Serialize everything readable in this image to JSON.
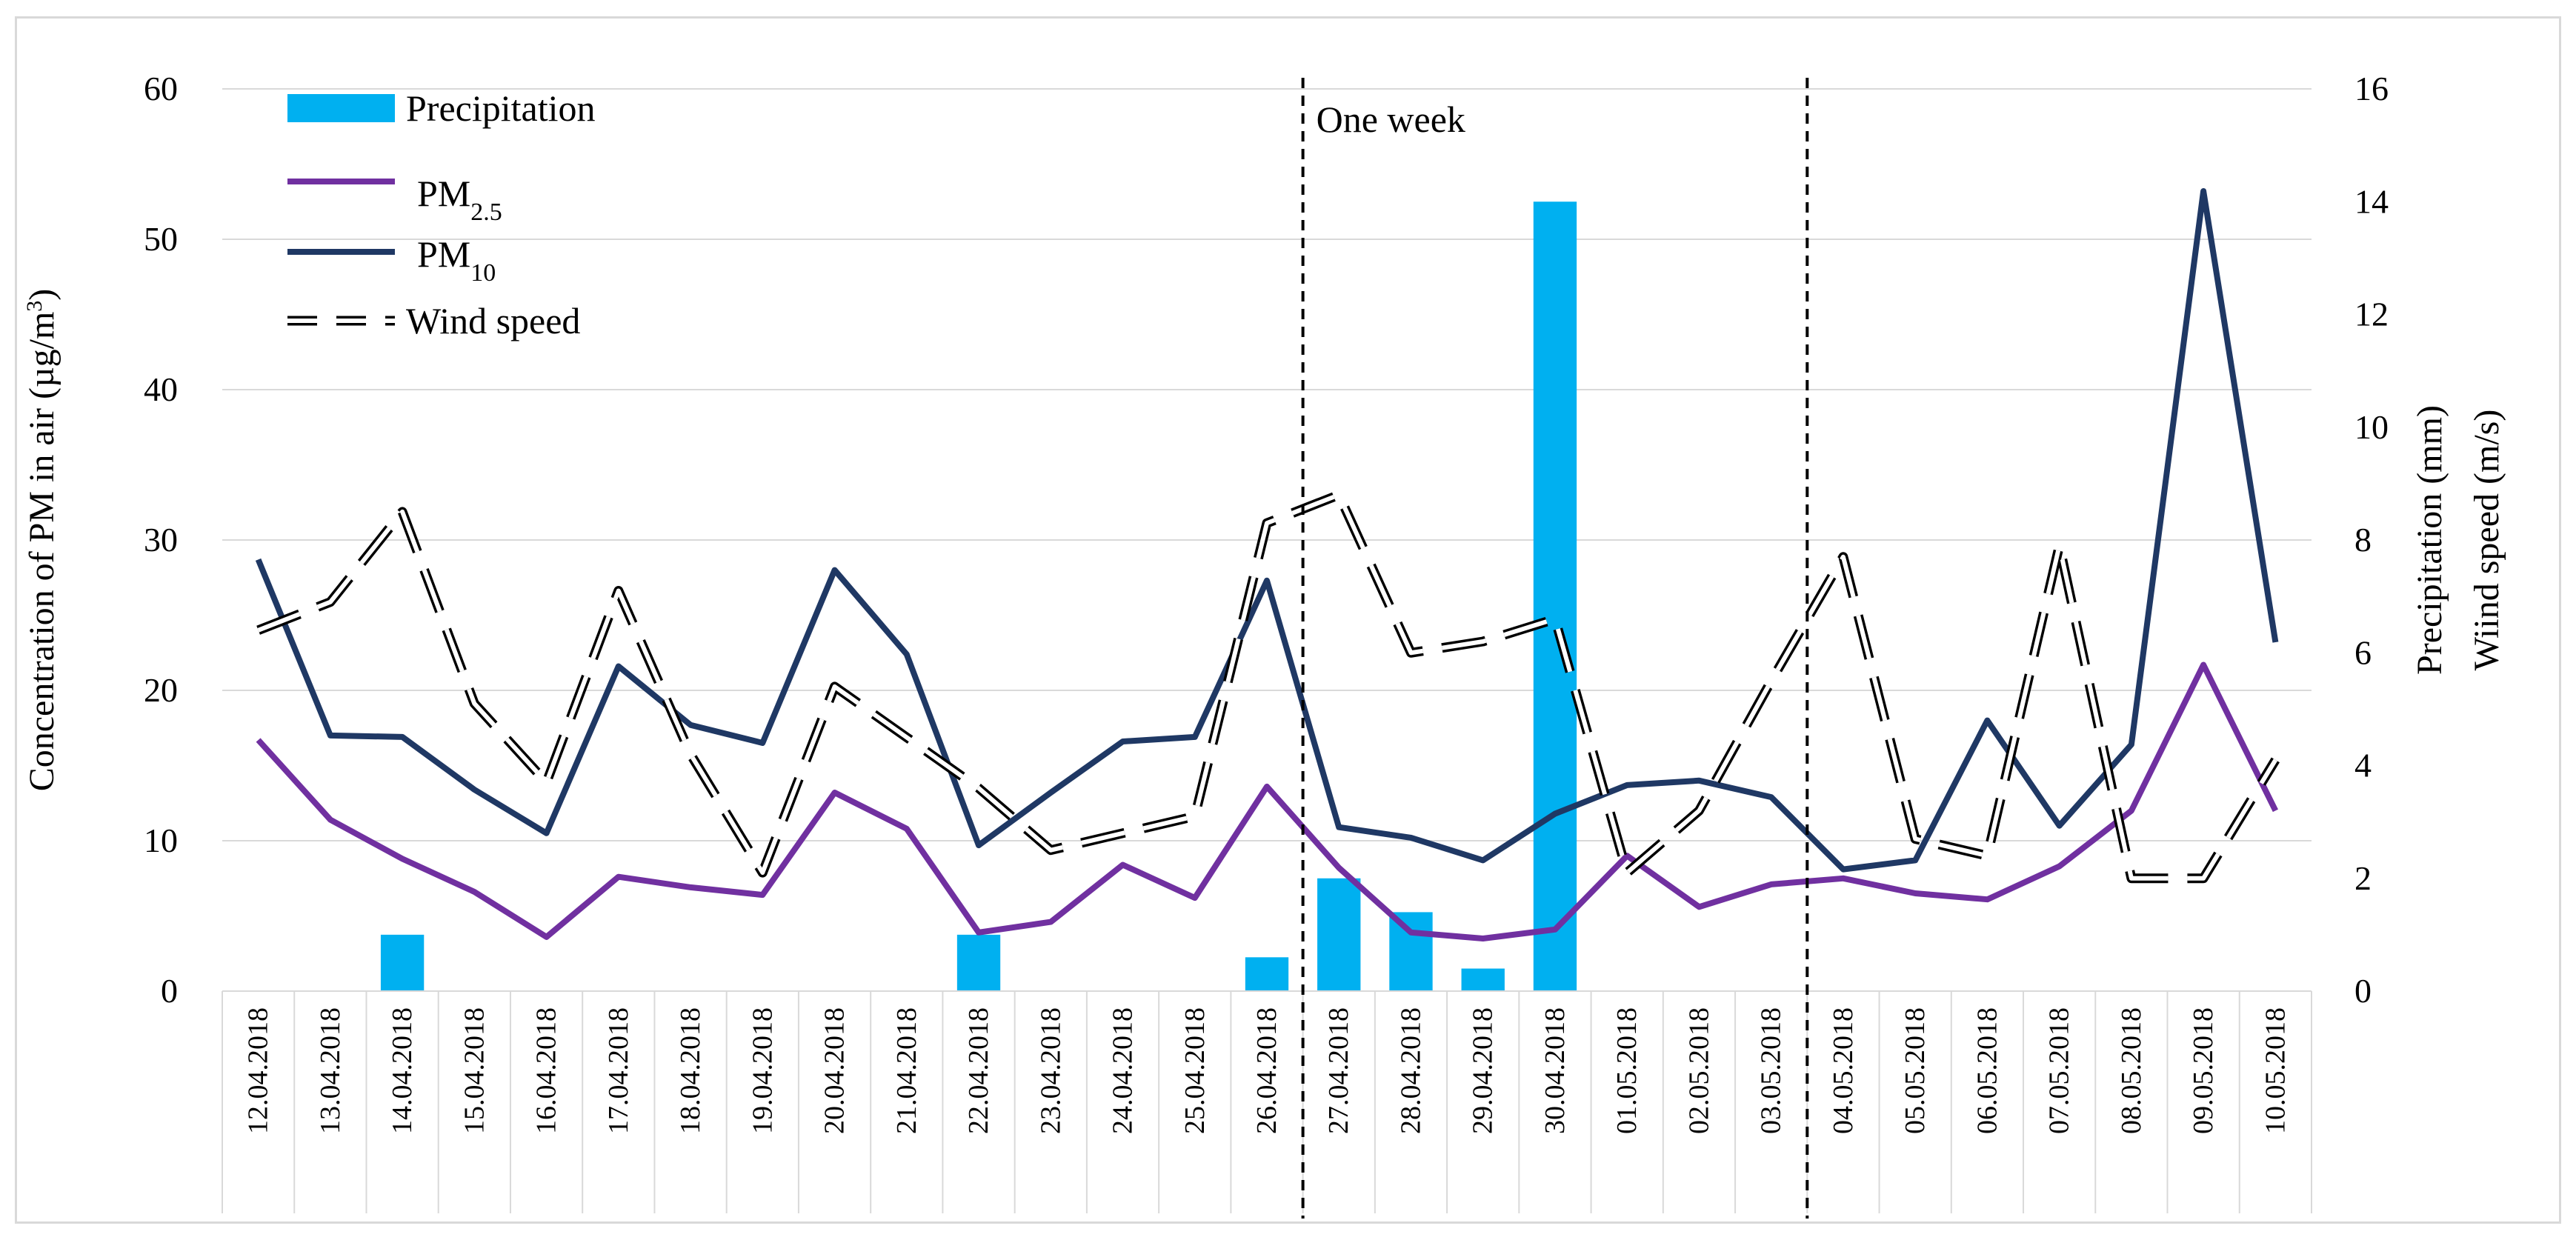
{
  "chart_data": {
    "type": "bar+line",
    "categories": [
      "12.04.2018",
      "13.04.2018",
      "14.04.2018",
      "15.04.2018",
      "16.04.2018",
      "17.04.2018",
      "18.04.2018",
      "19.04.2018",
      "20.04.2018",
      "21.04.2018",
      "22.04.2018",
      "23.04.2018",
      "24.04.2018",
      "25.04.2018",
      "26.04.2018",
      "27.04.2018",
      "28.04.2018",
      "29.04.2018",
      "30.04.2018",
      "01.05.2018",
      "02.05.2018",
      "03.05.2018",
      "04.05.2018",
      "05.05.2018",
      "06.05.2018",
      "07.05.2018",
      "08.05.2018",
      "09.05.2018",
      "10.05.2018"
    ],
    "y_left": {
      "label_main": "Concentration of PM in air (µg/m",
      "label_sup": "3",
      "label_end": ")",
      "ticks": [
        0,
        10,
        20,
        30,
        40,
        50,
        60
      ],
      "min": 0,
      "max": 60
    },
    "y_right": {
      "label_line1": "Precipitation (mm)",
      "label_line2": "Wiind speed (m/s)",
      "ticks": [
        0,
        2,
        4,
        6,
        8,
        10,
        12,
        14,
        16
      ],
      "min": 0,
      "max": 16
    },
    "series": [
      {
        "name": "Precipitation",
        "type": "bar",
        "axis": "right",
        "color": "#00b0f0",
        "values": [
          0,
          0,
          1,
          0,
          0,
          0,
          0,
          0,
          0,
          0,
          1,
          0,
          0,
          0,
          0.6,
          2,
          1.4,
          0.4,
          14,
          0,
          0,
          0,
          0,
          0,
          0,
          0,
          0,
          0,
          0
        ]
      },
      {
        "name_main": "PM",
        "name_sub": "2.5",
        "type": "line",
        "axis": "left",
        "color": "#7030a0",
        "values": [
          16.7,
          11.4,
          8.8,
          6.6,
          3.6,
          7.6,
          6.9,
          6.4,
          13.2,
          10.8,
          3.9,
          4.6,
          8.4,
          6.2,
          13.6,
          8.2,
          3.9,
          3.5,
          4.1,
          9,
          5.6,
          7.1,
          7.5,
          6.5,
          6.1,
          8.3,
          12,
          21.7,
          12
        ]
      },
      {
        "name_main": "PM",
        "name_sub": "10",
        "type": "line",
        "axis": "left",
        "color": "#1f3864",
        "values": [
          28.7,
          17,
          16.9,
          13.4,
          10.5,
          21.6,
          17.7,
          16.5,
          28,
          22.4,
          9.7,
          13.2,
          16.6,
          16.9,
          27.3,
          10.9,
          10.2,
          8.7,
          11.8,
          13.7,
          14,
          12.9,
          8.1,
          8.7,
          18,
          11,
          16.4,
          53.2,
          23.2
        ]
      },
      {
        "name": "Wind speed",
        "type": "line",
        "dash": true,
        "axis": "right",
        "color": "#000000",
        "values": [
          6.4,
          6.9,
          8.5,
          5.1,
          3.7,
          7.1,
          4.2,
          2.1,
          5.4,
          4.5,
          3.6,
          2.5,
          2.8,
          3.1,
          8.3,
          8.8,
          6,
          6.2,
          6.6,
          2.1,
          3.2,
          5.5,
          7.7,
          2.7,
          2.4,
          7.9,
          2,
          2,
          4.1
        ]
      }
    ],
    "annotations": [
      {
        "text": "One week",
        "between": [
          "26.04.2018",
          "27.04.2018"
        ],
        "end_between": [
          "03.05.2018",
          "04.05.2018"
        ]
      }
    ],
    "legend_position": "top-left",
    "grid": "horizontal"
  }
}
